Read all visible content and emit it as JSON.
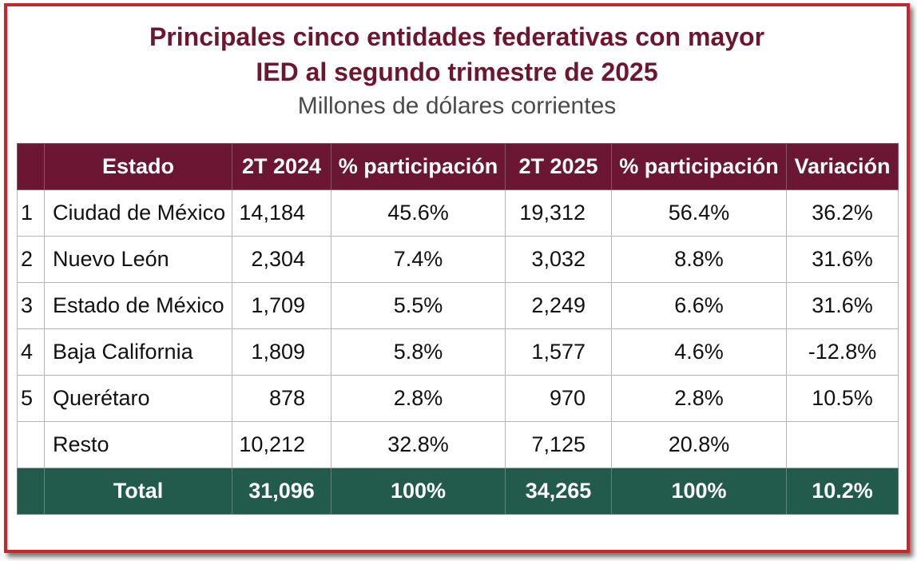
{
  "title_line1": "Principales cinco entidades federativas con mayor",
  "title_line2": "IED al segundo trimestre de 2025",
  "subtitle": "Millones de dólares corrientes",
  "table": {
    "headers": [
      "",
      "Estado",
      "2T 2024",
      "% participación",
      "2T 2025",
      "% participación",
      "Variación"
    ],
    "rows": [
      {
        "rank": "1",
        "estado": "Ciudad de México",
        "v2024": "14,184",
        "p2024": "45.6%",
        "v2025": "19,312",
        "p2025": "56.4%",
        "variacion": "36.2%"
      },
      {
        "rank": "2",
        "estado": "Nuevo León",
        "v2024": "2,304",
        "p2024": "7.4%",
        "v2025": "3,032",
        "p2025": "8.8%",
        "variacion": "31.6%"
      },
      {
        "rank": "3",
        "estado": "Estado de México",
        "v2024": "1,709",
        "p2024": "5.5%",
        "v2025": "2,249",
        "p2025": "6.6%",
        "variacion": "31.6%"
      },
      {
        "rank": "4",
        "estado": "Baja California",
        "v2024": "1,809",
        "p2024": "5.8%",
        "v2025": "1,577",
        "p2025": "4.6%",
        "variacion": "-12.8%"
      },
      {
        "rank": "5",
        "estado": "Querétaro",
        "v2024": "878",
        "p2024": "2.8%",
        "v2025": "970",
        "p2025": "2.8%",
        "variacion": "10.5%"
      },
      {
        "rank": "",
        "estado": "Resto",
        "v2024": "10,212",
        "p2024": "32.8%",
        "v2025": "7,125",
        "p2025": "20.8%",
        "variacion": ""
      }
    ],
    "total": {
      "label": "Total",
      "v2024": "31,096",
      "p2024": "100%",
      "v2025": "34,265",
      "p2025": "100%",
      "variacion": "10.2%"
    }
  },
  "colors": {
    "header_bg": "#6b1633",
    "total_bg": "#225a4b",
    "title_color": "#6e1530",
    "frame_border": "#c8262c"
  }
}
